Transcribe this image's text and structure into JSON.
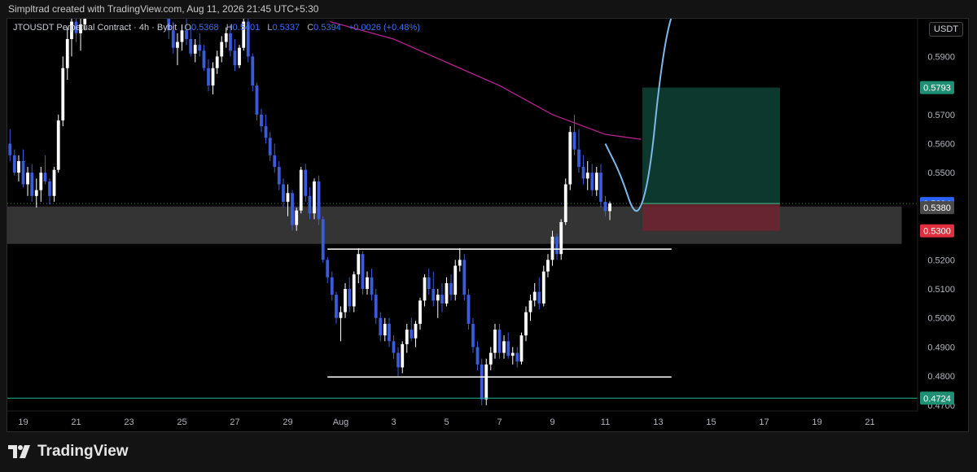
{
  "credit": "Simpltrad created with TradingView.com, Aug 11, 2026 21:45 UTC+5:30",
  "legend": {
    "symbol": "JTOUSDT Perpetual Contract · 4h · Bybit",
    "open_label": "O",
    "open": "0.5368",
    "high_label": "H",
    "high": "0.5401",
    "low_label": "L",
    "low": "0.5337",
    "close_label": "C",
    "close": "0.5394",
    "change": "+0.0026 (+0.48%)"
  },
  "currency": "USDT",
  "footer": {
    "brand": "TradingView",
    "logo_icon": "tradingview-logo-icon"
  },
  "colors": {
    "background": "#000000",
    "up": "#ffffff",
    "down": "#3b5bdb",
    "ma": "#b4228f",
    "projection": "#7fb6e8",
    "profit_zone": "#0d3b30",
    "loss_zone": "#6b2430",
    "zone": "#3a3a3a",
    "teal_line": "#1fb894"
  },
  "chart_data": {
    "type": "candlestick",
    "symbol": "JTOUSDT",
    "interval": "4h",
    "exchange": "Bybit",
    "y_axis": {
      "min": 0.468,
      "max": 0.603,
      "ticks": [
        "0.4700",
        "0.4800",
        "0.4900",
        "0.5000",
        "0.5100",
        "0.5200",
        "0.5300",
        "0.5400",
        "0.5500",
        "0.5600",
        "0.5700",
        "0.5800",
        "0.5900"
      ],
      "show_labels": [
        "0.4700",
        "0.4800",
        "0.4900",
        "0.5000",
        "0.5100",
        "0.5200",
        "0.5500",
        "0.5600",
        "0.5700",
        "0.5900"
      ]
    },
    "x_axis": {
      "min": 18.4,
      "max": 22.0,
      "ticks": [
        {
          "x": 19,
          "label": "19"
        },
        {
          "x": 21,
          "label": "21"
        },
        {
          "x": 23,
          "label": "23"
        },
        {
          "x": 25,
          "label": "25"
        },
        {
          "x": 27,
          "label": "27"
        },
        {
          "x": 29,
          "label": "29"
        },
        {
          "x": 31,
          "label": "Aug"
        },
        {
          "x": 33,
          "label": "3"
        },
        {
          "x": 35,
          "label": "5"
        },
        {
          "x": 37,
          "label": "7"
        },
        {
          "x": 39,
          "label": "9"
        },
        {
          "x": 41,
          "label": "11"
        },
        {
          "x": 43,
          "label": "13"
        },
        {
          "x": 45,
          "label": "15"
        },
        {
          "x": 47,
          "label": "17"
        },
        {
          "x": 49,
          "label": "19"
        },
        {
          "x": 51,
          "label": "21"
        }
      ],
      "note": "x values are days counted from July 0 (31 = Aug 1)"
    },
    "price_labels": [
      {
        "value": 0.5793,
        "label": "0.5793",
        "color": "#1e8f72"
      },
      {
        "value": 0.5394,
        "label": "0.5394",
        "color": "#2962ff"
      },
      {
        "value": 0.538,
        "label": "0.5380",
        "color": "#4a4a4a"
      },
      {
        "value": 0.53,
        "label": "0.5300",
        "color": "#e03040"
      },
      {
        "value": 0.4724,
        "label": "0.4724",
        "color": "#1e8f72"
      }
    ],
    "drawings": {
      "zone": {
        "x_start": 18.4,
        "x_end": 52.2,
        "y_top": 0.5384,
        "y_bottom": 0.5255
      },
      "top_line": {
        "x_start": 30.5,
        "x_end": 43.5,
        "y": 0.5237
      },
      "bottom_line": {
        "x_start": 30.5,
        "x_end": 43.5,
        "y": 0.4797
      },
      "teal_line": {
        "y": 0.4724
      },
      "long_position": {
        "x_start": 42.4,
        "x_end": 47.6,
        "entry": 0.5394,
        "target": 0.5793,
        "stop": 0.53
      },
      "moving_average": [
        [
          30.6,
          0.602
        ],
        [
          33,
          0.596
        ],
        [
          35,
          0.588
        ],
        [
          37,
          0.58
        ],
        [
          39,
          0.57
        ],
        [
          41,
          0.5632
        ],
        [
          42.35,
          0.5615
        ]
      ],
      "projection": [
        [
          41,
          0.56
        ],
        [
          41.6,
          0.549
        ],
        [
          42.1,
          0.535
        ],
        [
          42.45,
          0.54
        ],
        [
          42.75,
          0.555
        ],
        [
          43,
          0.578
        ],
        [
          43.3,
          0.597
        ],
        [
          43.6,
          0.607
        ]
      ]
    },
    "candles_summary": "4h candles, July 18 to Aug 11",
    "candles": [
      [
        18.5,
        0.56,
        0.565,
        0.554,
        0.556
      ],
      [
        18.67,
        0.556,
        0.558,
        0.549,
        0.55
      ],
      [
        18.83,
        0.55,
        0.556,
        0.547,
        0.554
      ],
      [
        19.0,
        0.554,
        0.558,
        0.545,
        0.546
      ],
      [
        19.17,
        0.546,
        0.552,
        0.542,
        0.55
      ],
      [
        19.33,
        0.55,
        0.553,
        0.54,
        0.542
      ],
      [
        19.5,
        0.542,
        0.548,
        0.538,
        0.544
      ],
      [
        19.67,
        0.544,
        0.552,
        0.54,
        0.55
      ],
      [
        19.83,
        0.55,
        0.556,
        0.546,
        0.547
      ],
      [
        20.0,
        0.547,
        0.548,
        0.539,
        0.542
      ],
      [
        20.17,
        0.542,
        0.552,
        0.54,
        0.551
      ],
      [
        20.33,
        0.551,
        0.57,
        0.55,
        0.568
      ],
      [
        20.5,
        0.568,
        0.59,
        0.566,
        0.586
      ],
      [
        20.67,
        0.586,
        0.6,
        0.582,
        0.596
      ],
      [
        20.83,
        0.596,
        0.604,
        0.59,
        0.602
      ],
      [
        21.0,
        0.602,
        0.606,
        0.595,
        0.598
      ],
      [
        21.17,
        0.598,
        0.604,
        0.592,
        0.601
      ],
      [
        21.33,
        0.601,
        0.608,
        0.599,
        0.605
      ],
      [
        24.5,
        0.605,
        0.608,
        0.596,
        0.599
      ],
      [
        24.67,
        0.599,
        0.602,
        0.591,
        0.593
      ],
      [
        24.83,
        0.593,
        0.598,
        0.587,
        0.595
      ],
      [
        25.0,
        0.595,
        0.601,
        0.592,
        0.599
      ],
      [
        25.17,
        0.599,
        0.603,
        0.594,
        0.596
      ],
      [
        25.33,
        0.596,
        0.6,
        0.59,
        0.591
      ],
      [
        25.5,
        0.591,
        0.596,
        0.588,
        0.594
      ],
      [
        25.67,
        0.594,
        0.598,
        0.59,
        0.592
      ],
      [
        25.83,
        0.592,
        0.594,
        0.585,
        0.586
      ],
      [
        26.0,
        0.586,
        0.589,
        0.578,
        0.58
      ],
      [
        26.17,
        0.58,
        0.588,
        0.577,
        0.586
      ],
      [
        26.33,
        0.586,
        0.592,
        0.584,
        0.59
      ],
      [
        26.5,
        0.59,
        0.597,
        0.588,
        0.595
      ],
      [
        26.67,
        0.595,
        0.6,
        0.593,
        0.598
      ],
      [
        26.83,
        0.598,
        0.601,
        0.59,
        0.592
      ],
      [
        27.0,
        0.592,
        0.596,
        0.585,
        0.587
      ],
      [
        27.17,
        0.587,
        0.594,
        0.586,
        0.593
      ],
      [
        27.33,
        0.593,
        0.605,
        0.592,
        0.602
      ],
      [
        27.5,
        0.602,
        0.606,
        0.588,
        0.59
      ],
      [
        27.67,
        0.59,
        0.591,
        0.578,
        0.58
      ],
      [
        27.83,
        0.58,
        0.581,
        0.568,
        0.57
      ],
      [
        28.0,
        0.57,
        0.572,
        0.564,
        0.566
      ],
      [
        28.17,
        0.566,
        0.57,
        0.56,
        0.562
      ],
      [
        28.33,
        0.562,
        0.564,
        0.554,
        0.556
      ],
      [
        28.5,
        0.556,
        0.56,
        0.55,
        0.552
      ],
      [
        28.67,
        0.552,
        0.554,
        0.544,
        0.546
      ],
      [
        28.83,
        0.546,
        0.548,
        0.538,
        0.54
      ],
      [
        29.0,
        0.54,
        0.546,
        0.535,
        0.543
      ],
      [
        29.17,
        0.543,
        0.544,
        0.53,
        0.532
      ],
      [
        29.33,
        0.532,
        0.538,
        0.53,
        0.537
      ],
      [
        29.5,
        0.537,
        0.552,
        0.536,
        0.551
      ],
      [
        29.67,
        0.551,
        0.553,
        0.54,
        0.542
      ],
      [
        29.83,
        0.542,
        0.545,
        0.534,
        0.536
      ],
      [
        30.0,
        0.536,
        0.548,
        0.534,
        0.547
      ],
      [
        30.17,
        0.547,
        0.549,
        0.532,
        0.534
      ],
      [
        30.33,
        0.534,
        0.535,
        0.519,
        0.52
      ],
      [
        30.5,
        0.52,
        0.521,
        0.512,
        0.514
      ],
      [
        30.67,
        0.514,
        0.516,
        0.506,
        0.508
      ],
      [
        30.83,
        0.508,
        0.509,
        0.498,
        0.5
      ],
      [
        31.0,
        0.5,
        0.504,
        0.492,
        0.502
      ],
      [
        31.17,
        0.502,
        0.512,
        0.5,
        0.51
      ],
      [
        31.33,
        0.51,
        0.514,
        0.502,
        0.504
      ],
      [
        31.5,
        0.504,
        0.516,
        0.502,
        0.515
      ],
      [
        31.67,
        0.515,
        0.524,
        0.512,
        0.522
      ],
      [
        31.83,
        0.522,
        0.523,
        0.508,
        0.51
      ],
      [
        32.0,
        0.51,
        0.516,
        0.508,
        0.514
      ],
      [
        32.17,
        0.514,
        0.517,
        0.506,
        0.508
      ],
      [
        32.33,
        0.508,
        0.51,
        0.498,
        0.5
      ],
      [
        32.5,
        0.5,
        0.502,
        0.492,
        0.494
      ],
      [
        32.67,
        0.494,
        0.5,
        0.492,
        0.498
      ],
      [
        32.83,
        0.498,
        0.5,
        0.49,
        0.492
      ],
      [
        33.0,
        0.492,
        0.494,
        0.486,
        0.488
      ],
      [
        33.17,
        0.488,
        0.49,
        0.48,
        0.483
      ],
      [
        33.33,
        0.483,
        0.492,
        0.481,
        0.491
      ],
      [
        33.5,
        0.491,
        0.498,
        0.488,
        0.496
      ],
      [
        33.67,
        0.496,
        0.5,
        0.492,
        0.493
      ],
      [
        33.83,
        0.493,
        0.499,
        0.49,
        0.498
      ],
      [
        34.0,
        0.498,
        0.507,
        0.496,
        0.506
      ],
      [
        34.17,
        0.506,
        0.515,
        0.504,
        0.514
      ],
      [
        34.33,
        0.514,
        0.517,
        0.508,
        0.51
      ],
      [
        34.5,
        0.51,
        0.516,
        0.504,
        0.506
      ],
      [
        34.67,
        0.506,
        0.51,
        0.5,
        0.508
      ],
      [
        34.83,
        0.508,
        0.512,
        0.502,
        0.505
      ],
      [
        35.0,
        0.505,
        0.514,
        0.504,
        0.512
      ],
      [
        35.17,
        0.512,
        0.515,
        0.506,
        0.508
      ],
      [
        35.33,
        0.508,
        0.52,
        0.506,
        0.518
      ],
      [
        35.5,
        0.518,
        0.524,
        0.516,
        0.52
      ],
      [
        35.67,
        0.52,
        0.522,
        0.506,
        0.508
      ],
      [
        35.83,
        0.508,
        0.51,
        0.496,
        0.498
      ],
      [
        36.0,
        0.498,
        0.5,
        0.488,
        0.49
      ],
      [
        36.17,
        0.49,
        0.492,
        0.482,
        0.484
      ],
      [
        36.33,
        0.484,
        0.486,
        0.47,
        0.472
      ],
      [
        36.5,
        0.472,
        0.486,
        0.47,
        0.484
      ],
      [
        36.67,
        0.484,
        0.49,
        0.482,
        0.488
      ],
      [
        36.83,
        0.488,
        0.498,
        0.486,
        0.496
      ],
      [
        37.0,
        0.496,
        0.498,
        0.486,
        0.488
      ],
      [
        37.17,
        0.488,
        0.494,
        0.486,
        0.492
      ],
      [
        37.33,
        0.492,
        0.495,
        0.486,
        0.487
      ],
      [
        37.5,
        0.487,
        0.49,
        0.484,
        0.488
      ],
      [
        37.67,
        0.488,
        0.49,
        0.483,
        0.485
      ],
      [
        37.83,
        0.485,
        0.495,
        0.484,
        0.494
      ],
      [
        38.0,
        0.494,
        0.504,
        0.492,
        0.502
      ],
      [
        38.17,
        0.502,
        0.508,
        0.499,
        0.506
      ],
      [
        38.33,
        0.506,
        0.512,
        0.504,
        0.509
      ],
      [
        38.5,
        0.509,
        0.514,
        0.503,
        0.505
      ],
      [
        38.67,
        0.505,
        0.518,
        0.504,
        0.516
      ],
      [
        38.83,
        0.516,
        0.522,
        0.514,
        0.52
      ],
      [
        39.0,
        0.52,
        0.53,
        0.518,
        0.528
      ],
      [
        39.17,
        0.528,
        0.529,
        0.52,
        0.522
      ],
      [
        39.33,
        0.522,
        0.534,
        0.52,
        0.533
      ],
      [
        39.5,
        0.533,
        0.548,
        0.532,
        0.546
      ],
      [
        39.67,
        0.546,
        0.566,
        0.544,
        0.564
      ],
      [
        39.83,
        0.564,
        0.57,
        0.556,
        0.558
      ],
      [
        40.0,
        0.558,
        0.565,
        0.55,
        0.552
      ],
      [
        40.17,
        0.552,
        0.556,
        0.546,
        0.548
      ],
      [
        40.33,
        0.548,
        0.554,
        0.544,
        0.55
      ],
      [
        40.5,
        0.55,
        0.553,
        0.542,
        0.544
      ],
      [
        40.67,
        0.544,
        0.552,
        0.542,
        0.55
      ],
      [
        40.83,
        0.55,
        0.553,
        0.538,
        0.54
      ],
      [
        41.0,
        0.54,
        0.542,
        0.535,
        0.5368
      ],
      [
        41.17,
        0.5368,
        0.5401,
        0.5337,
        0.5394
      ]
    ]
  }
}
